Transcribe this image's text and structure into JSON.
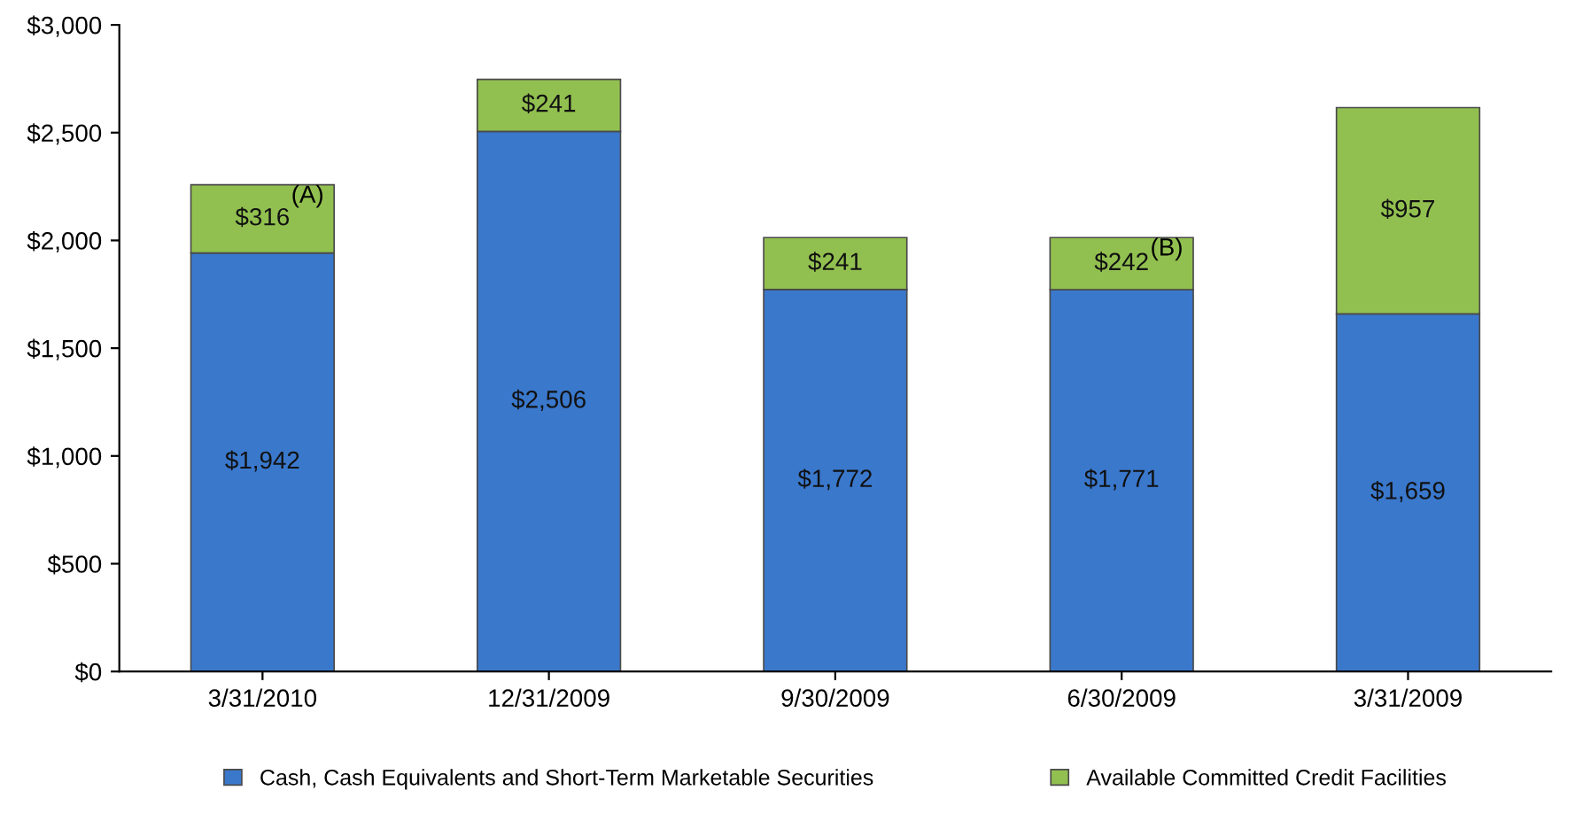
{
  "chart_data": {
    "type": "bar",
    "stacked": true,
    "categories": [
      "3/31/2010",
      "12/31/2009",
      "9/30/2009",
      "6/30/2009",
      "3/31/2009"
    ],
    "series": [
      {
        "name": "Cash, Cash Equivalents and Short-Term Marketable Securities",
        "color": "#3a78cc",
        "values": [
          1942,
          2506,
          1772,
          1771,
          1659
        ],
        "value_labels": [
          "$1,942",
          "$2,506",
          "$1,772",
          "$1,771",
          "$1,659"
        ]
      },
      {
        "name": "Available Committed Credit Facilities",
        "color": "#92c050",
        "values": [
          316,
          241,
          241,
          242,
          957
        ],
        "value_labels": [
          "$316",
          "$241",
          "$241",
          "$242",
          "$957"
        ]
      }
    ],
    "ylim": [
      0,
      3000
    ],
    "yticks": [
      {
        "value": 0,
        "label": "$0"
      },
      {
        "value": 500,
        "label": "$500"
      },
      {
        "value": 1000,
        "label": "$1,000"
      },
      {
        "value": 1500,
        "label": "$1,500"
      },
      {
        "value": 2000,
        "label": "$2,000"
      },
      {
        "value": 2500,
        "label": "$2,500"
      },
      {
        "value": 3000,
        "label": "$3,000"
      }
    ],
    "annotations": [
      {
        "text": "(A)",
        "x": "3/31/2010",
        "y": 2258
      },
      {
        "text": "(B)",
        "x": "6/30/2009",
        "y": 2013
      }
    ],
    "grid": false,
    "legend": "bottom"
  }
}
